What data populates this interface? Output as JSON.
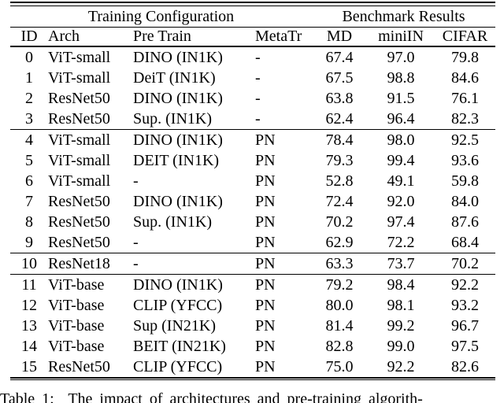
{
  "table": {
    "group_headers": [
      {
        "label": "Training Configuration",
        "colspan": 4
      },
      {
        "label": "Benchmark Results",
        "colspan": 3
      }
    ],
    "columns": [
      "ID",
      "Arch",
      "Pre Train",
      "MetaTr",
      "MD",
      "miniIN",
      "CIFAR"
    ],
    "rows": [
      {
        "id": "0",
        "arch": "ViT-small",
        "pretrain": "DINO (IN1K)",
        "metatr": "-",
        "md": "67.4",
        "miniin": "97.0",
        "cifar": "79.8",
        "rule_above": false
      },
      {
        "id": "1",
        "arch": "ViT-small",
        "pretrain": "DeiT (IN1K)",
        "metatr": "-",
        "md": "67.5",
        "miniin": "98.8",
        "cifar": "84.6",
        "rule_above": false
      },
      {
        "id": "2",
        "arch": "ResNet50",
        "pretrain": "DINO (IN1K)",
        "metatr": "-",
        "md": "63.8",
        "miniin": "91.5",
        "cifar": "76.1",
        "rule_above": false
      },
      {
        "id": "3",
        "arch": "ResNet50",
        "pretrain": "Sup. (IN1K)",
        "metatr": "-",
        "md": "62.4",
        "miniin": "96.4",
        "cifar": "82.3",
        "rule_above": false
      },
      {
        "id": "4",
        "arch": "ViT-small",
        "pretrain": "DINO (IN1K)",
        "metatr": "PN",
        "md": "78.4",
        "miniin": "98.0",
        "cifar": "92.5",
        "rule_above": true
      },
      {
        "id": "5",
        "arch": "ViT-small",
        "pretrain": "DEIT (IN1K)",
        "metatr": "PN",
        "md": "79.3",
        "miniin": "99.4",
        "cifar": "93.6",
        "rule_above": false
      },
      {
        "id": "6",
        "arch": "ViT-small",
        "pretrain": "-",
        "metatr": "PN",
        "md": "52.8",
        "miniin": "49.1",
        "cifar": "59.8",
        "rule_above": false
      },
      {
        "id": "7",
        "arch": "ResNet50",
        "pretrain": "DINO (IN1K)",
        "metatr": "PN",
        "md": "72.4",
        "miniin": "92.0",
        "cifar": "84.0",
        "rule_above": false
      },
      {
        "id": "8",
        "arch": "ResNet50",
        "pretrain": "Sup. (IN1K)",
        "metatr": "PN",
        "md": "70.2",
        "miniin": "97.4",
        "cifar": "87.6",
        "rule_above": false
      },
      {
        "id": "9",
        "arch": "ResNet50",
        "pretrain": "-",
        "metatr": "PN",
        "md": "62.9",
        "miniin": "72.2",
        "cifar": "68.4",
        "rule_above": false
      },
      {
        "id": "10",
        "arch": "ResNet18",
        "pretrain": "-",
        "metatr": "PN",
        "md": "63.3",
        "miniin": "73.7",
        "cifar": "70.2",
        "rule_above": true
      },
      {
        "id": "11",
        "arch": "ViT-base",
        "pretrain": "DINO (IN1K)",
        "metatr": "PN",
        "md": "79.2",
        "miniin": "98.4",
        "cifar": "92.2",
        "rule_above": true
      },
      {
        "id": "12",
        "arch": "ViT-base",
        "pretrain": "CLIP (YFCC)",
        "metatr": "PN",
        "md": "80.0",
        "miniin": "98.1",
        "cifar": "93.2",
        "rule_above": false
      },
      {
        "id": "13",
        "arch": "ViT-base",
        "pretrain": "Sup (IN21K)",
        "metatr": "PN",
        "md": "81.4",
        "miniin": "99.2",
        "cifar": "96.7",
        "rule_above": false
      },
      {
        "id": "14",
        "arch": "ViT-base",
        "pretrain": "BEIT (IN21K)",
        "metatr": "PN",
        "md": "82.8",
        "miniin": "99.0",
        "cifar": "97.5",
        "rule_above": false
      },
      {
        "id": "15",
        "arch": "ResNet50",
        "pretrain": "CLIP (YFCC)",
        "metatr": "PN",
        "md": "75.0",
        "miniin": "92.2",
        "cifar": "82.6",
        "rule_above": false
      }
    ]
  },
  "caption": "Table 1:  The impact of architectures and pre-training algorith-",
  "colors": {
    "text": "#000000",
    "background": "#ffffff",
    "rule": "#000000"
  }
}
